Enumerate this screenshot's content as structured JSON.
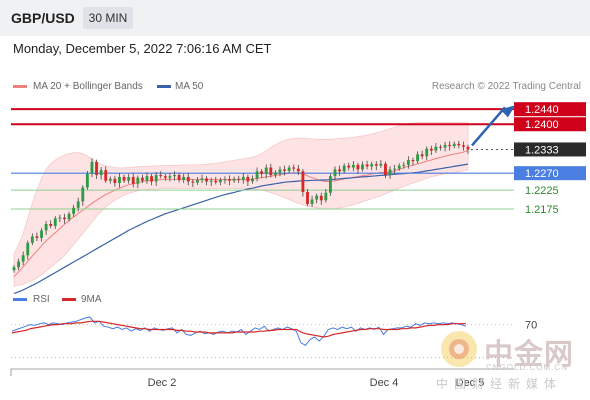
{
  "header": {
    "symbol": "GBP/USD",
    "timeframe": "30 MIN",
    "datetime": "Monday, December 5, 2022 7:06:16 AM CET"
  },
  "legend": {
    "ma20_label": "MA 20 + Bollinger Bands",
    "ma50_label": "MA 50",
    "credit": "Research © 2022 Trading Central",
    "rsi_label": "RSI",
    "ma9_label": "9MA"
  },
  "colors": {
    "candle_up": "#2e9b44",
    "candle_down": "#d62828",
    "ma20": "#f08080",
    "bollinger_fill": "#fde3e3",
    "ma50": "#3a62a8",
    "resistance": "#d0021b",
    "pivot": "#4a7ee0",
    "support": "#8fcf8f",
    "arrow": "#2f63b0",
    "rsi": "#4a7ee0",
    "rsi_ma": "#d62828"
  },
  "chart_data": {
    "type": "candlestick",
    "ylim": [
      1.1965,
      1.2475
    ],
    "x_ticks": [
      "Dec 2",
      "Dec 4",
      "Dec 5"
    ],
    "levels": [
      {
        "value": 1.244,
        "label": "1.2440",
        "kind": "resistance"
      },
      {
        "value": 1.24,
        "label": "1.2400",
        "kind": "resistance"
      },
      {
        "value": 1.2333,
        "label": "1.2333",
        "kind": "last"
      },
      {
        "value": 1.227,
        "label": "1.2270",
        "kind": "pivot"
      },
      {
        "value": 1.2225,
        "label": "1.2225",
        "kind": "support"
      },
      {
        "value": 1.2175,
        "label": "1.2175",
        "kind": "support"
      }
    ],
    "close": [
      1.202,
      1.2035,
      1.2052,
      1.2085,
      1.2102,
      1.2098,
      1.2118,
      1.2135,
      1.213,
      1.215,
      1.2152,
      1.2148,
      1.2162,
      1.2178,
      1.2195,
      1.2232,
      1.2268,
      1.23,
      1.2265,
      1.2278,
      1.225,
      1.2255,
      1.2244,
      1.226,
      1.225,
      1.226,
      1.2242,
      1.2258,
      1.225,
      1.2262,
      1.2248,
      1.2265,
      1.2262,
      1.2258,
      1.2262,
      1.2265,
      1.2252,
      1.226,
      1.2248,
      1.2245,
      1.2252,
      1.2256,
      1.2248,
      1.225,
      1.2246,
      1.2252,
      1.2254,
      1.225,
      1.2255,
      1.2252,
      1.226,
      1.2248,
      1.2256,
      1.2275,
      1.2268,
      1.2285,
      1.2265,
      1.2272,
      1.228,
      1.2276,
      1.2285,
      1.2282,
      1.2275,
      1.222,
      1.2188,
      1.22,
      1.221,
      1.2198,
      1.2218,
      1.2262,
      1.228,
      1.2275,
      1.229,
      1.2285,
      1.2292,
      1.228,
      1.2293,
      1.2288,
      1.2294,
      1.229,
      1.2295,
      1.2265,
      1.228,
      1.2282,
      1.229,
      1.2292,
      1.2305,
      1.2302,
      1.232,
      1.2315,
      1.2335,
      1.233,
      1.234,
      1.2338,
      1.2345,
      1.2342,
      1.2348,
      1.2344,
      1.234,
      1.2333
    ],
    "ma20": [
      1.1995,
      1.2008,
      1.2021,
      1.2036,
      1.205,
      1.2063,
      1.2077,
      1.209,
      1.2101,
      1.2112,
      1.2123,
      1.2134,
      1.2144,
      1.2154,
      1.2163,
      1.2172,
      1.2181,
      1.219,
      1.2198,
      1.2206,
      1.2213,
      1.2219,
      1.2225,
      1.223,
      1.2235,
      1.2239,
      1.2242,
      1.2245,
      1.2248,
      1.225,
      1.2251,
      1.2252,
      1.2253,
      1.2254,
      1.2254,
      1.2254,
      1.2254,
      1.2254,
      1.2254,
      1.2253,
      1.2253,
      1.2253,
      1.2253,
      1.2253,
      1.2253,
      1.2253,
      1.2253,
      1.2253,
      1.2253,
      1.2253,
      1.2253,
      1.2253,
      1.2254,
      1.2256,
      1.2258,
      1.226,
      1.2262,
      1.2264,
      1.2266,
      1.2268,
      1.227,
      1.2271,
      1.2271,
      1.2268,
      1.2263,
      1.2258,
      1.2254,
      1.225,
      1.2248,
      1.2248,
      1.225,
      1.2252,
      1.2255,
      1.2257,
      1.2259,
      1.2261,
      1.2263,
      1.2265,
      1.2268,
      1.227,
      1.2272,
      1.2272,
      1.2273,
      1.2276,
      1.228,
      1.2285,
      1.2288,
      1.2291,
      1.2295,
      1.2298,
      1.2302,
      1.2305,
      1.2309,
      1.2312,
      1.2315,
      1.2318,
      1.2321,
      1.2323,
      1.2326,
      1.233
    ],
    "bb_upper": [
      1.2055,
      1.208,
      1.211,
      1.215,
      1.219,
      1.2225,
      1.2255,
      1.228,
      1.2295,
      1.2305,
      1.2312,
      1.2318,
      1.2322,
      1.2324,
      1.2325,
      1.2322,
      1.2316,
      1.2308,
      1.23,
      1.2294,
      1.229,
      1.2287,
      1.2285,
      1.2284,
      1.2284,
      1.2285,
      1.2286,
      1.2287,
      1.2288,
      1.2288,
      1.2289,
      1.2289,
      1.229,
      1.229,
      1.229,
      1.2291,
      1.2291,
      1.2292,
      1.2292,
      1.2292,
      1.2292,
      1.2293,
      1.2294,
      1.2295,
      1.2296,
      1.2298,
      1.23,
      1.2302,
      1.2304,
      1.2306,
      1.2308,
      1.231,
      1.2312,
      1.2316,
      1.2322,
      1.233,
      1.2338,
      1.2345,
      1.2352,
      1.2357,
      1.236,
      1.2362,
      1.2363,
      1.2363,
      1.2362,
      1.2361,
      1.236,
      1.236,
      1.236,
      1.236,
      1.2361,
      1.2362,
      1.2363,
      1.2364,
      1.2365,
      1.2367,
      1.2369,
      1.2371,
      1.2374,
      1.2377,
      1.238,
      1.2384,
      1.2388,
      1.2392,
      1.2396,
      1.24,
      1.2402,
      1.2403,
      1.2404,
      1.2404,
      1.2404,
      1.2404,
      1.2404,
      1.2404,
      1.2404,
      1.2404,
      1.2404,
      1.2404,
      1.2404,
      1.2404
    ],
    "bb_lower": [
      1.197,
      1.1972,
      1.1975,
      1.198,
      1.1985,
      1.1992,
      1.2,
      1.201,
      1.202,
      1.203,
      1.204,
      1.2052,
      1.2065,
      1.208,
      1.2095,
      1.211,
      1.2125,
      1.214,
      1.2155,
      1.2168,
      1.218,
      1.219,
      1.2198,
      1.2205,
      1.2211,
      1.2216,
      1.222,
      1.2223,
      1.2225,
      1.2227,
      1.2228,
      1.2228,
      1.2229,
      1.2229,
      1.2229,
      1.2229,
      1.2229,
      1.2229,
      1.2229,
      1.2229,
      1.2229,
      1.2229,
      1.2229,
      1.2229,
      1.2229,
      1.2229,
      1.2229,
      1.2229,
      1.2229,
      1.2229,
      1.2229,
      1.2229,
      1.2228,
      1.2227,
      1.2225,
      1.2222,
      1.2218,
      1.2214,
      1.221,
      1.2205,
      1.22,
      1.2195,
      1.219,
      1.2186,
      1.2182,
      1.218,
      1.2178,
      1.2176,
      1.2175,
      1.2175,
      1.2176,
      1.2178,
      1.218,
      1.2183,
      1.2186,
      1.219,
      1.2194,
      1.2198,
      1.2202,
      1.2206,
      1.221,
      1.2215,
      1.222,
      1.2225,
      1.223,
      1.2235,
      1.224,
      1.2244,
      1.2248,
      1.2252,
      1.2256,
      1.226,
      1.2263,
      1.2266,
      1.2268,
      1.227,
      1.2272,
      1.2274,
      1.2276,
      1.2278
    ],
    "ma50": [
      1.195,
      1.1955,
      1.196,
      1.1966,
      1.1972,
      1.1978,
      1.1985,
      1.1992,
      1.1999,
      1.2006,
      1.2013,
      1.202,
      1.2027,
      1.2034,
      1.2041,
      1.2048,
      1.2055,
      1.2062,
      1.2069,
      1.2076,
      1.2083,
      1.209,
      1.2097,
      1.2104,
      1.2111,
      1.2118,
      1.2124,
      1.213,
      1.2136,
      1.2142,
      1.2147,
      1.2152,
      1.2157,
      1.2162,
      1.2166,
      1.217,
      1.2174,
      1.2178,
      1.2182,
      1.2186,
      1.219,
      1.2194,
      1.2198,
      1.2202,
      1.2206,
      1.221,
      1.2213,
      1.2216,
      1.2219,
      1.2222,
      1.2225,
      1.2228,
      1.223,
      1.2233,
      1.2236,
      1.2238,
      1.224,
      1.2242,
      1.2244,
      1.2246,
      1.2247,
      1.2248,
      1.2249,
      1.225,
      1.225,
      1.2251,
      1.2251,
      1.2252,
      1.2252,
      1.2253,
      1.2254,
      1.2255,
      1.2256,
      1.2257,
      1.2258,
      1.2259,
      1.226,
      1.2261,
      1.2262,
      1.2263,
      1.2264,
      1.2265,
      1.2266,
      1.2267,
      1.2268,
      1.2269,
      1.227,
      1.2271,
      1.2272,
      1.2274,
      1.2276,
      1.2278,
      1.228,
      1.2282,
      1.2284,
      1.2286,
      1.2288,
      1.229,
      1.2292,
      1.2294
    ],
    "rsi_axis_label": "70",
    "rsi_ylim": [
      20,
      90
    ],
    "rsi": [
      62,
      64,
      66,
      68,
      70,
      69,
      71,
      72,
      70,
      72,
      71,
      70,
      72,
      73,
      74,
      76,
      78,
      79,
      72,
      74,
      68,
      67,
      65,
      67,
      64,
      66,
      62,
      65,
      63,
      66,
      62,
      66,
      64,
      63,
      65,
      66,
      60,
      64,
      58,
      57,
      60,
      62,
      59,
      60,
      58,
      61,
      62,
      60,
      62,
      61,
      64,
      58,
      62,
      66,
      64,
      68,
      62,
      64,
      66,
      64,
      67,
      65,
      62,
      48,
      45,
      52,
      55,
      50,
      56,
      64,
      66,
      64,
      67,
      65,
      67,
      62,
      66,
      64,
      66,
      64,
      67,
      58,
      64,
      65,
      66,
      66,
      68,
      67,
      71,
      69,
      72,
      71,
      72,
      71,
      72,
      71,
      72,
      71,
      70,
      68
    ],
    "rsi_ma": [
      60,
      61,
      62,
      63,
      65,
      66,
      67,
      68,
      69,
      70,
      70,
      71,
      71,
      71,
      72,
      72,
      73,
      74,
      74,
      74,
      73,
      72,
      71,
      70,
      69,
      68,
      67,
      66,
      65,
      65,
      64,
      64,
      64,
      64,
      64,
      64,
      63,
      63,
      62,
      62,
      61,
      61,
      61,
      60,
      60,
      60,
      60,
      60,
      60,
      61,
      61,
      61,
      61,
      61,
      62,
      62,
      63,
      63,
      64,
      64,
      64,
      64,
      64,
      61,
      59,
      58,
      57,
      56,
      55,
      56,
      58,
      59,
      60,
      61,
      62,
      63,
      64,
      64,
      65,
      65,
      65,
      64,
      64,
      64,
      64,
      65,
      65,
      66,
      66,
      67,
      68,
      69,
      69,
      70,
      70,
      70,
      71,
      71,
      71,
      71
    ]
  }
}
